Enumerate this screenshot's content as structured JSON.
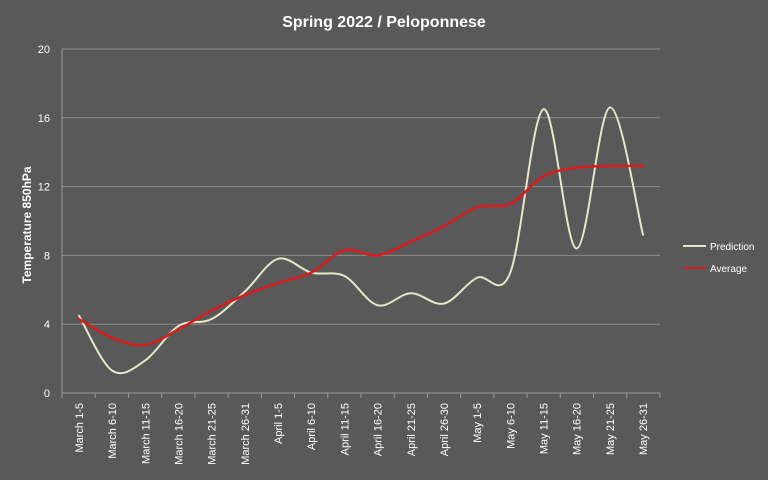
{
  "chart_data": {
    "type": "line",
    "title": "Spring 2022 / Peloponnese",
    "xlabel": "",
    "ylabel": "Temperature 850hPa",
    "ylim": [
      0,
      20
    ],
    "yticks": [
      0,
      4,
      8,
      12,
      16,
      20
    ],
    "grid": true,
    "legend_position": "right",
    "categories": [
      "March 1-5",
      "March 6-10",
      "March 11-15",
      "March 16-20",
      "March 21-25",
      "March 26-31",
      "April 1-5",
      "April 6-10",
      "April 11-15",
      "April 16-20",
      "April 21-25",
      "April 26-30",
      "May 1-5",
      "May 6-10",
      "May 11-15",
      "May 16-20",
      "May 21-25",
      "May 26-31"
    ],
    "series": [
      {
        "name": "Prediction",
        "color": "#e6e6c8",
        "values": [
          4.5,
          1.3,
          1.9,
          3.9,
          4.3,
          5.9,
          7.8,
          7.0,
          6.8,
          5.1,
          5.8,
          5.2,
          6.7,
          7.0,
          16.5,
          8.4,
          16.6,
          9.2
        ]
      },
      {
        "name": "Average",
        "color": "#d91c1c",
        "values": [
          4.3,
          3.2,
          2.8,
          3.7,
          4.8,
          5.7,
          6.4,
          7.0,
          8.3,
          8.0,
          8.8,
          9.7,
          10.8,
          11.0,
          12.6,
          13.1,
          13.2,
          13.2
        ]
      }
    ]
  }
}
